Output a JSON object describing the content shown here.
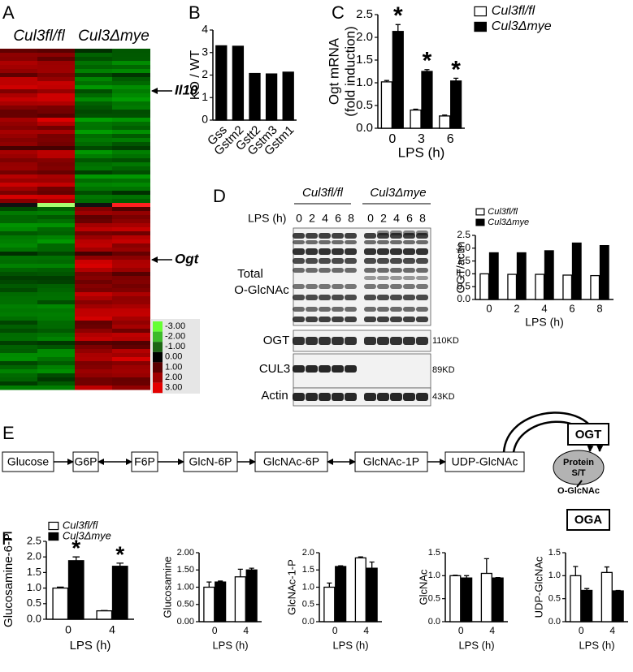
{
  "panel_labels": [
    "A",
    "B",
    "C",
    "D",
    "E",
    "F"
  ],
  "heatmap": {
    "column_headers": [
      "Cul3fl/fl",
      "Cul3Δmye"
    ],
    "gene_labels": [
      "Il10",
      "Ogt"
    ],
    "colorbar_labels": [
      "-3.00",
      "-2.00",
      "-1.00",
      "0.00",
      "1.00",
      "2.00",
      "3.00"
    ]
  },
  "blot": {
    "group_headers": [
      "Cul3fl/fl",
      "Cul3Δmye"
    ],
    "time_label": "LPS (h)",
    "lanes": [
      "0",
      "2",
      "4",
      "6",
      "8",
      "0",
      "2",
      "4",
      "6",
      "8"
    ],
    "row_labels": [
      "Total",
      "O-GlcNAc",
      "OGT",
      "CUL3",
      "Actin"
    ],
    "sizes": [
      "110KD",
      "89KD",
      "43KD"
    ]
  },
  "pathway": {
    "steps": [
      "Glucose",
      "G6P",
      "F6P",
      "GlcN-6P",
      "GlcNAc-6P",
      "GlcNAc-1P",
      "UDP-GlcNAc"
    ],
    "enzymes": [
      "OGT",
      "OGA"
    ],
    "protein": [
      "Protein",
      "S/T"
    ],
    "modification": "O-GlcNAc"
  },
  "chart_data": [
    {
      "type": "bar",
      "ylabel": "KO / WT",
      "categories": [
        "Gss",
        "Gstm2",
        "Gstt2",
        "Gstm3",
        "Gstm1"
      ],
      "values": [
        3.3,
        3.28,
        2.07,
        2.05,
        2.13
      ],
      "color": "#000000",
      "ylim": [
        0,
        4
      ],
      "yticks": [
        0,
        1,
        2,
        3,
        4
      ]
    },
    {
      "type": "bar",
      "ylabel": [
        "Ogt mRNA",
        "(fold induction)"
      ],
      "xlabel": "LPS (h)",
      "categories": [
        "0",
        "3",
        "6"
      ],
      "series": [
        {
          "name": "Cul3fl/fl",
          "color": "#ffffff",
          "values": [
            1.02,
            0.4,
            0.27
          ],
          "errors": [
            0.03,
            0.02,
            0.02
          ]
        },
        {
          "name": "Cul3Δmye",
          "color": "#000000",
          "values": [
            2.13,
            1.25,
            1.04
          ],
          "errors": [
            0.15,
            0.04,
            0.06
          ],
          "significance": [
            "*",
            "*",
            "*"
          ]
        }
      ],
      "ylim": [
        0,
        2.5
      ],
      "yticks": [
        {
          "value": 0,
          "label": "0.0"
        },
        0.5,
        {
          "value": 1,
          "label": "1.0"
        },
        1.5,
        {
          "value": 2,
          "label": "2.0"
        },
        2.5
      ],
      "legend": "right"
    },
    {
      "type": "bar",
      "ylabel": "OGT/actin",
      "xlabel": "LPS (h)",
      "categories": [
        "0",
        "2",
        "4",
        "6",
        "8"
      ],
      "series": [
        {
          "name": "Cul3fl/fl",
          "color": "#ffffff",
          "values": [
            1.0,
            0.98,
            0.98,
            0.95,
            0.93
          ]
        },
        {
          "name": "Cul3Δmye",
          "color": "#000000",
          "values": [
            1.82,
            1.82,
            1.9,
            2.2,
            2.1
          ]
        }
      ],
      "ylim": [
        0,
        2.5
      ],
      "yticks": [
        {
          "value": 0,
          "label": "0.0"
        },
        0.5,
        {
          "value": 1,
          "label": "1.0"
        },
        1.5,
        {
          "value": 2,
          "label": "2.0"
        },
        2.5
      ],
      "legend": "top"
    },
    {
      "type": "bar",
      "ylabel": "Glucosamine-6-P",
      "xlabel": "LPS (h)",
      "categories": [
        "0",
        "4"
      ],
      "series": [
        {
          "name": "Cul3fl/fl",
          "color": "#ffffff",
          "values": [
            1.0,
            0.27
          ],
          "errors": [
            0.03,
            0.01
          ]
        },
        {
          "name": "Cul3Δmye",
          "color": "#000000",
          "values": [
            1.88,
            1.7
          ],
          "errors": [
            0.12,
            0.1
          ],
          "significance": [
            "*",
            "*"
          ]
        }
      ],
      "ylim": [
        0,
        2.5
      ],
      "yticks": [
        {
          "value": 0,
          "label": "0.0"
        },
        0.5,
        {
          "value": 1,
          "label": "1.0"
        },
        1.5,
        {
          "value": 2,
          "label": "2.0"
        },
        2.5
      ],
      "legend": "top"
    },
    {
      "type": "bar",
      "ylabel": "Glucosamine",
      "xlabel": "LPS (h)",
      "categories": [
        "0",
        "4"
      ],
      "series": [
        {
          "name": "Cul3fl/fl",
          "color": "#ffffff",
          "values": [
            1.0,
            1.3
          ],
          "errors": [
            0.15,
            0.22
          ]
        },
        {
          "name": "Cul3Δmye",
          "color": "#000000",
          "values": [
            1.15,
            1.5
          ],
          "errors": [
            0.03,
            0.05
          ]
        }
      ],
      "ylim": [
        0,
        2
      ],
      "yticks": [
        {
          "value": 0,
          "label": "0.00"
        },
        {
          "value": 0.5,
          "label": "0.50"
        },
        {
          "value": 1,
          "label": "1.00"
        },
        {
          "value": 1.5,
          "label": "1.50"
        },
        {
          "value": 2,
          "label": "2.00"
        }
      ]
    },
    {
      "type": "bar",
      "ylabel": "GlcNAc-1-P",
      "xlabel": "LPS (h)",
      "categories": [
        "0",
        "4"
      ],
      "series": [
        {
          "name": "Cul3fl/fl",
          "color": "#ffffff",
          "values": [
            1.0,
            1.85
          ],
          "errors": [
            0.12,
            0.03
          ]
        },
        {
          "name": "Cul3Δmye",
          "color": "#000000",
          "values": [
            1.6,
            1.55
          ],
          "errors": [
            0.02,
            0.18
          ]
        }
      ],
      "ylim": [
        0,
        2
      ],
      "yticks": [
        {
          "value": 0,
          "label": "0.0"
        },
        0.5,
        {
          "value": 1,
          "label": "1.0"
        },
        1.5,
        {
          "value": 2,
          "label": "2.0"
        }
      ]
    },
    {
      "type": "bar",
      "ylabel": "GlcNAc",
      "xlabel": "LPS (h)",
      "categories": [
        "0",
        "4"
      ],
      "series": [
        {
          "name": "Cul3fl/fl",
          "color": "#ffffff",
          "values": [
            1.0,
            1.05
          ],
          "errors": [
            0.01,
            0.32
          ]
        },
        {
          "name": "Cul3Δmye",
          "color": "#000000",
          "values": [
            0.95,
            0.95
          ],
          "errors": [
            0.05,
            0.01
          ]
        }
      ],
      "ylim": [
        0,
        1.5
      ],
      "yticks": [
        {
          "value": 0,
          "label": "0.0"
        },
        0.5,
        {
          "value": 1,
          "label": "1.0"
        },
        1.5
      ]
    },
    {
      "type": "bar",
      "ylabel": "UDP-GlcNAc",
      "xlabel": "LPS (h)",
      "categories": [
        "0",
        "4"
      ],
      "series": [
        {
          "name": "Cul3fl/fl",
          "color": "#ffffff",
          "values": [
            1.0,
            1.07
          ],
          "errors": [
            0.2,
            0.12
          ]
        },
        {
          "name": "Cul3Δmye",
          "color": "#000000",
          "values": [
            0.68,
            0.67
          ],
          "errors": [
            0.04,
            0.01
          ]
        }
      ],
      "ylim": [
        0,
        1.5
      ],
      "yticks": [
        {
          "value": 0,
          "label": "0.0"
        },
        0.5,
        {
          "value": 1,
          "label": "1.0"
        },
        1.5
      ]
    }
  ]
}
